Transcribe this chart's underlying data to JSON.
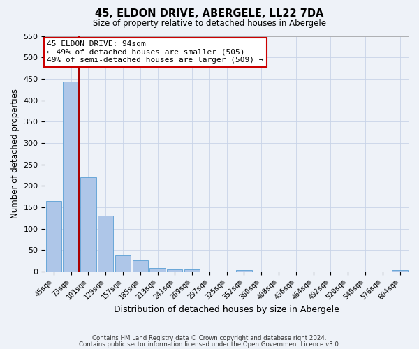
{
  "title": "45, ELDON DRIVE, ABERGELE, LL22 7DA",
  "subtitle": "Size of property relative to detached houses in Abergele",
  "xlabel": "Distribution of detached houses by size in Abergele",
  "ylabel": "Number of detached properties",
  "bar_labels": [
    "45sqm",
    "73sqm",
    "101sqm",
    "129sqm",
    "157sqm",
    "185sqm",
    "213sqm",
    "241sqm",
    "269sqm",
    "297sqm",
    "325sqm",
    "352sqm",
    "380sqm",
    "408sqm",
    "436sqm",
    "464sqm",
    "492sqm",
    "520sqm",
    "548sqm",
    "576sqm",
    "604sqm"
  ],
  "bar_values": [
    165,
    443,
    220,
    130,
    37,
    26,
    9,
    5,
    5,
    0,
    0,
    4,
    0,
    0,
    0,
    0,
    0,
    0,
    0,
    0,
    3
  ],
  "bar_color": "#aec6e8",
  "bar_edge_color": "#5a9fd4",
  "vline_color": "#aa0000",
  "ylim": [
    0,
    550
  ],
  "yticks": [
    0,
    50,
    100,
    150,
    200,
    250,
    300,
    350,
    400,
    450,
    500,
    550
  ],
  "annotation_title": "45 ELDON DRIVE: 94sqm",
  "annotation_line1": "← 49% of detached houses are smaller (505)",
  "annotation_line2": "49% of semi-detached houses are larger (509) →",
  "annotation_box_color": "#ffffff",
  "annotation_box_edge": "#cc0000",
  "footer1": "Contains HM Land Registry data © Crown copyright and database right 2024.",
  "footer2": "Contains public sector information licensed under the Open Government Licence v3.0.",
  "bg_color": "#eef2f8",
  "grid_color": "#c8d4e8"
}
